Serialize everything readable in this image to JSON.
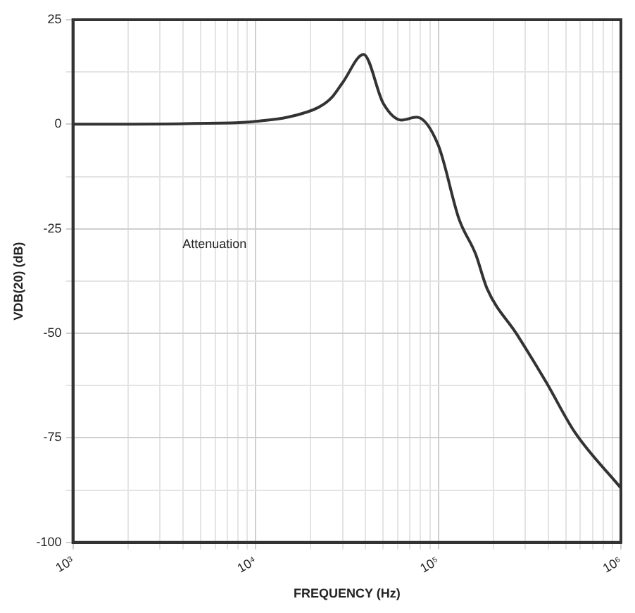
{
  "chart_data": {
    "type": "line",
    "xlabel": "FREQUENCY (Hz)",
    "ylabel": "VDB(20) (dB)",
    "annotations": [
      "Attenuation"
    ],
    "log": "x",
    "x": [
      1000,
      7300,
      10000,
      15000,
      22000,
      26000,
      30000,
      39000,
      50000,
      63000,
      76000,
      100000,
      130000,
      160000,
      185000,
      270000,
      390000,
      560000,
      1000000
    ],
    "series": [
      {
        "color": "#333333",
        "values": [
          0,
          0.3,
          0.7,
          1.7,
          4,
          6.3,
          10,
          16.7,
          5,
          1,
          1.7,
          -5,
          -22.7,
          -31,
          -39.3,
          -50.3,
          -61.7,
          -73.7,
          -87
        ]
      }
    ],
    "xlim": [
      1000,
      1000000
    ],
    "xticks": [
      {
        "value": 1000,
        "label": "10³"
      },
      {
        "value": 2000,
        "label": null
      },
      {
        "value": 3000,
        "label": null
      },
      {
        "value": 4000,
        "label": null
      },
      {
        "value": 5000,
        "label": null
      },
      {
        "value": 6000,
        "label": null
      },
      {
        "value": 7000,
        "label": null
      },
      {
        "value": 8000,
        "label": null
      },
      {
        "value": 9000,
        "label": null
      },
      {
        "value": 10000,
        "label": "10⁴"
      },
      {
        "value": 20000,
        "label": null
      },
      {
        "value": 30000,
        "label": null
      },
      {
        "value": 40000,
        "label": null
      },
      {
        "value": 50000,
        "label": null
      },
      {
        "value": 60000,
        "label": null
      },
      {
        "value": 70000,
        "label": null
      },
      {
        "value": 80000,
        "label": null
      },
      {
        "value": 90000,
        "label": null
      },
      {
        "value": 100000,
        "label": "10⁵"
      },
      {
        "value": 200000,
        "label": null
      },
      {
        "value": 300000,
        "label": null
      },
      {
        "value": 400000,
        "label": null
      },
      {
        "value": 500000,
        "label": null
      },
      {
        "value": 600000,
        "label": null
      },
      {
        "value": 700000,
        "label": null
      },
      {
        "value": 800000,
        "label": null
      },
      {
        "value": 900000,
        "label": null
      },
      {
        "value": 1000000,
        "label": "10⁶"
      }
    ],
    "ylim": [
      -100,
      25
    ],
    "yticks": [
      -100,
      {
        "value": -87.5,
        "label": null
      },
      -75,
      {
        "value": -62.5,
        "label": null
      },
      -50,
      {
        "value": -37.5,
        "label": null
      },
      -25,
      {
        "value": -12.5,
        "label": null
      },
      0,
      {
        "value": 12.5,
        "label": null
      },
      25
    ],
    "grid": true,
    "marker": "none",
    "line_style": "solid"
  }
}
